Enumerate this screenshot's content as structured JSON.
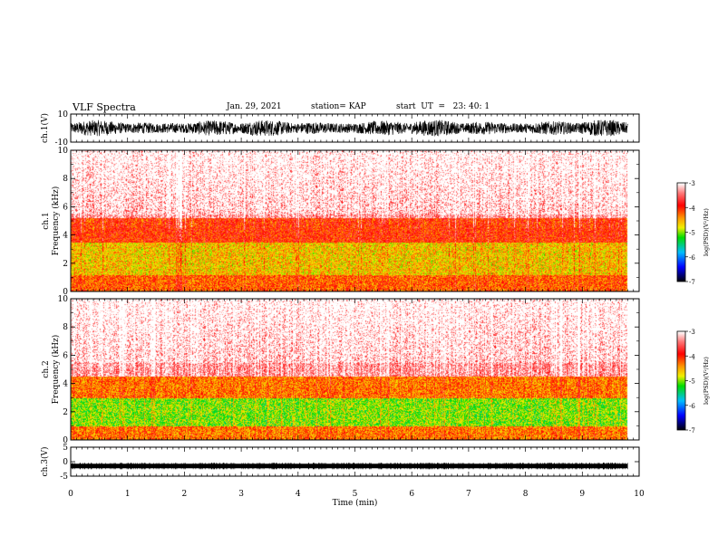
{
  "header": {
    "title": "VLF Spectra",
    "date": "Jan. 29, 2021",
    "station": "station= KAP",
    "start": "start  UT  =   23: 40: 1"
  },
  "chart_data": [
    {
      "type": "line",
      "panel": "ch1-waveform",
      "ylabel": "ch.1(V)",
      "ylim": [
        -10,
        10
      ],
      "yticks": [
        "10",
        "-10"
      ],
      "xlim": [
        0,
        10
      ],
      "data_extent_min": 9.8,
      "description_values": {
        "approx_amplitude_V": 6
      }
    },
    {
      "type": "heatmap",
      "panel": "ch1-spectrogram",
      "ylabel": "ch.1\nFrequency (kHz)",
      "ylabel_line1": "ch.1",
      "ylabel_line2": "Frequency (kHz)",
      "ylim": [
        0,
        10
      ],
      "yticks": [
        "0",
        "2",
        "4",
        "6",
        "8",
        "10"
      ],
      "xlim": [
        0,
        10
      ],
      "data_extent_min": 9.8,
      "bands_kHz": [
        {
          "from": 0,
          "to": 1.2,
          "level": -4.2
        },
        {
          "from": 1.2,
          "to": 3.5,
          "level": -4.6
        },
        {
          "from": 3.5,
          "to": 5.2,
          "level": -4.0
        },
        {
          "from": 5.2,
          "to": 10,
          "level": -3.3
        }
      ],
      "colorbar": {
        "label": "log(PSD)(V²/Hz)",
        "ticks": [
          "-3",
          "-4",
          "-5",
          "-6",
          "-7"
        ],
        "range": [
          -7,
          -3
        ]
      }
    },
    {
      "type": "heatmap",
      "panel": "ch2-spectrogram",
      "ylabel": "ch.2\nFrequency (kHz)",
      "ylabel_line1": "ch.2",
      "ylabel_line2": "Frequency (kHz)",
      "ylim": [
        0,
        10
      ],
      "yticks": [
        "0",
        "2",
        "4",
        "6",
        "8",
        "10"
      ],
      "xlim": [
        0,
        10
      ],
      "data_extent_min": 9.8,
      "bands_kHz": [
        {
          "from": 0,
          "to": 1.0,
          "level": -4.3
        },
        {
          "from": 1.0,
          "to": 3.0,
          "level": -5.0
        },
        {
          "from": 3.0,
          "to": 4.5,
          "level": -4.3
        },
        {
          "from": 4.5,
          "to": 10,
          "level": -3.3
        }
      ],
      "colorbar": {
        "label": "log(PSD)(V²/Hz)",
        "ticks": [
          "-3",
          "-4",
          "-5",
          "-6",
          "-7"
        ],
        "range": [
          -7,
          -3
        ]
      }
    },
    {
      "type": "line",
      "panel": "ch3-waveform",
      "ylabel": "ch.3(V)",
      "ylim": [
        -5,
        5
      ],
      "yticks": [
        "5",
        "0",
        "-5"
      ],
      "xlim": [
        0,
        10
      ],
      "data_extent_min": 9.8,
      "xlabel": "Time  (min)",
      "xticks": [
        "0",
        "1",
        "2",
        "3",
        "4",
        "5",
        "6",
        "7",
        "8",
        "9",
        "10"
      ],
      "description_values": {
        "approx_level_V": -1.5
      }
    }
  ],
  "colors": {
    "white": "#ffffff",
    "red": "#ff0000",
    "orange": "#ff8c00",
    "yellow": "#ffff00",
    "green": "#00e000",
    "cyan": "#00c0ff",
    "blue": "#0000ff",
    "black": "#000000"
  }
}
